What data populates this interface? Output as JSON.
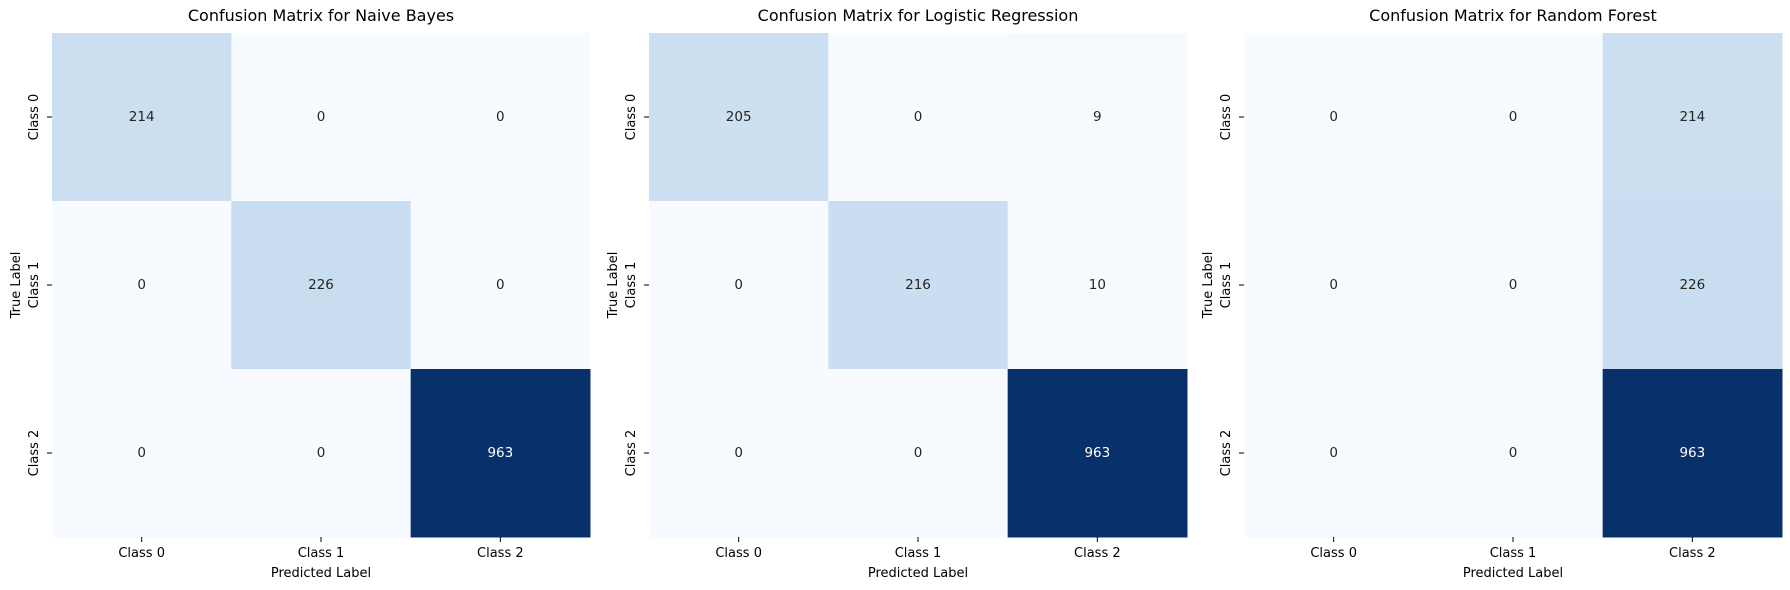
{
  "colormap": {
    "name": "Blues",
    "low_color": "#f7fbff",
    "high_color": "#08306b",
    "text_on_light": "#262626",
    "text_on_dark": "#ffffff"
  },
  "chart_data": [
    {
      "type": "heatmap",
      "title": "Confusion Matrix for Naive Bayes",
      "xlabel": "Predicted Label",
      "ylabel": "True Label",
      "x_categories": [
        "Class 0",
        "Class 1",
        "Class 2"
      ],
      "y_categories": [
        "Class 0",
        "Class 1",
        "Class 2"
      ],
      "values": [
        [
          214,
          0,
          0
        ],
        [
          0,
          226,
          0
        ],
        [
          0,
          0,
          963
        ]
      ],
      "colorbar": false,
      "grid": false
    },
    {
      "type": "heatmap",
      "title": "Confusion Matrix for Logistic Regression",
      "xlabel": "Predicted Label",
      "ylabel": "True Label",
      "x_categories": [
        "Class 0",
        "Class 1",
        "Class 2"
      ],
      "y_categories": [
        "Class 0",
        "Class 1",
        "Class 2"
      ],
      "values": [
        [
          205,
          0,
          9
        ],
        [
          0,
          216,
          10
        ],
        [
          0,
          0,
          963
        ]
      ],
      "colorbar": false,
      "grid": false
    },
    {
      "type": "heatmap",
      "title": "Confusion Matrix for Random Forest",
      "xlabel": "Predicted Label",
      "ylabel": "True Label",
      "x_categories": [
        "Class 0",
        "Class 1",
        "Class 2"
      ],
      "y_categories": [
        "Class 0",
        "Class 1",
        "Class 2"
      ],
      "values": [
        [
          0,
          0,
          214
        ],
        [
          0,
          0,
          226
        ],
        [
          0,
          0,
          963
        ]
      ],
      "colorbar": false,
      "grid": false
    }
  ]
}
